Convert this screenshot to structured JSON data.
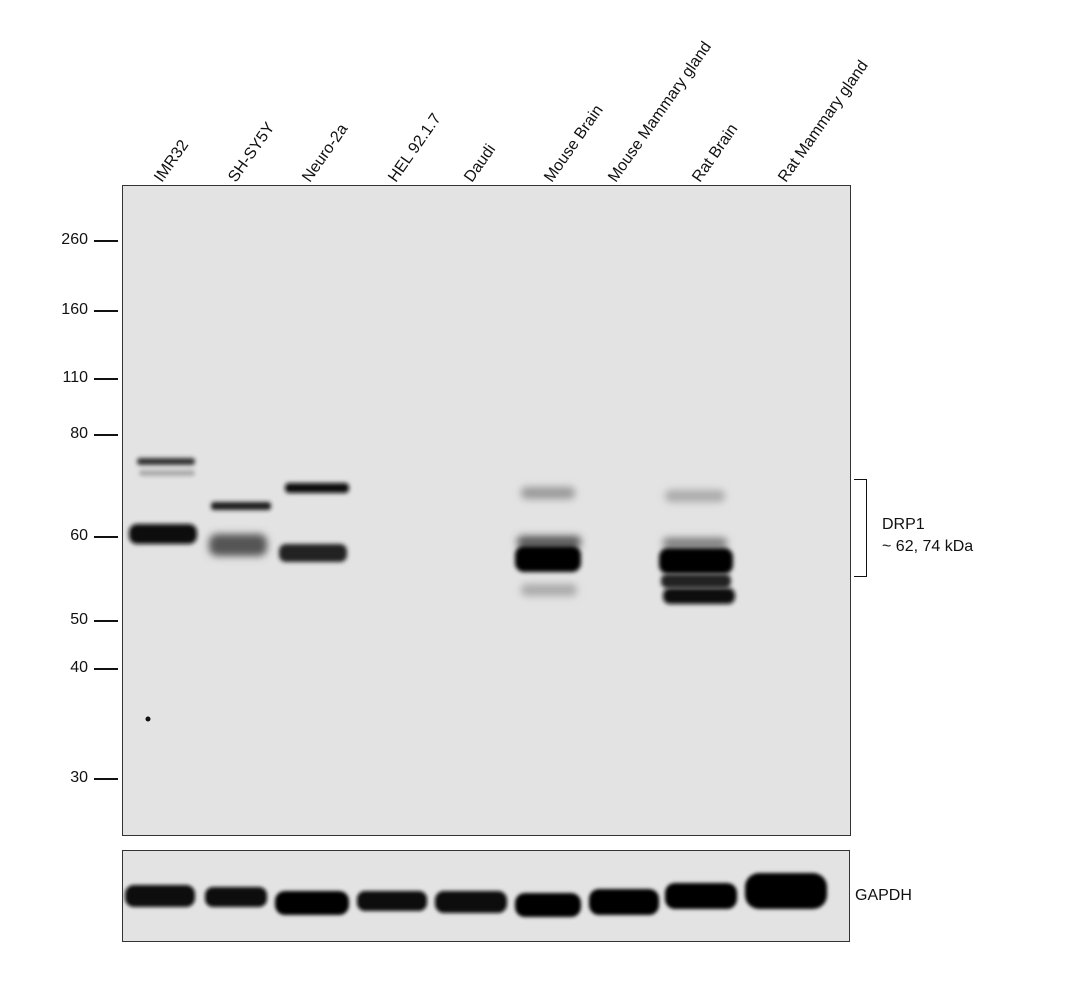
{
  "lanes": [
    "IMR32",
    "SH-SY5Y",
    "Neuro-2a",
    "HEL 92.1.7",
    "Daudi",
    "Mouse Brain",
    "Mouse Mammary gland",
    "Rat Brain",
    "Rat Mammary gland"
  ],
  "mw_markers": [
    "260",
    "160",
    "110",
    "80",
    "60",
    "50",
    "40",
    "30"
  ],
  "target": {
    "name": "DRP1",
    "size": "~ 62, 74 kDa"
  },
  "loading_control": "GAPDH",
  "colors": {
    "membrane": "#e3e3e3",
    "band": "#0b0b0b",
    "border": "#333333"
  }
}
